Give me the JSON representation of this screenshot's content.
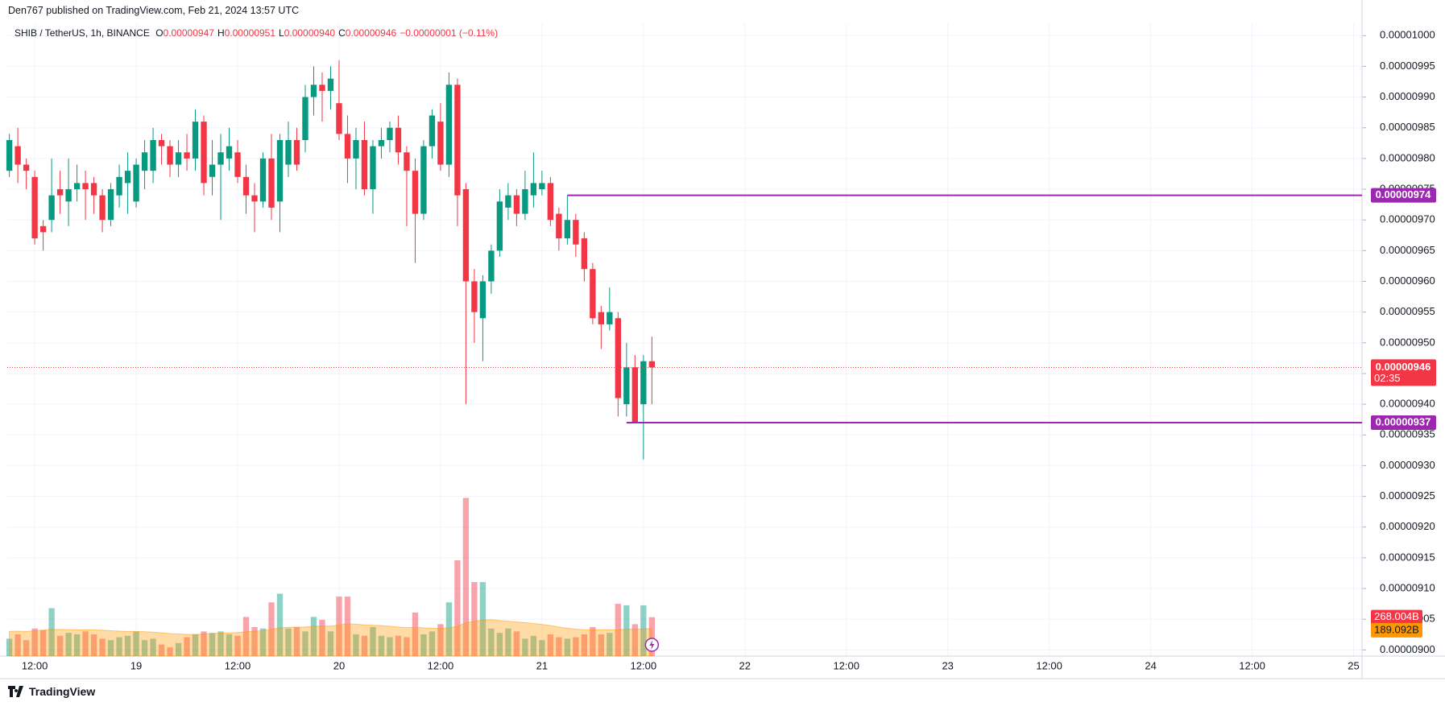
{
  "chart_data": {
    "type": "candlestick",
    "publisher": "Den767 published on TradingView.com, Feb 21, 2024 13:57 UTC",
    "title": "SHIB / TetherUS, 1h, BINANCE",
    "ohlc_legend": [
      {
        "key": "O",
        "value": "0.00000947"
      },
      {
        "key": "H",
        "value": "0.00000951"
      },
      {
        "key": "L",
        "value": "0.00000940"
      },
      {
        "key": "C",
        "value": "0.00000946"
      }
    ],
    "change": "−0.00000001 (−0.11%)",
    "brand": "TradingView",
    "up_color": "#089981",
    "down_color": "#f23645",
    "level_color": "#9c27b0",
    "ma_color": "#ff9800",
    "grid": true,
    "x": [
      "2024-02-18T09:00",
      "2024-02-18T10:00",
      "2024-02-18T11:00",
      "2024-02-18T12:00",
      "2024-02-18T13:00",
      "2024-02-18T14:00",
      "2024-02-18T15:00",
      "2024-02-18T16:00",
      "2024-02-18T17:00",
      "2024-02-18T18:00",
      "2024-02-18T19:00",
      "2024-02-18T20:00",
      "2024-02-18T21:00",
      "2024-02-18T22:00",
      "2024-02-18T23:00",
      "2024-02-19T00:00",
      "2024-02-19T01:00",
      "2024-02-19T02:00",
      "2024-02-19T03:00",
      "2024-02-19T04:00",
      "2024-02-19T05:00",
      "2024-02-19T06:00",
      "2024-02-19T07:00",
      "2024-02-19T08:00",
      "2024-02-19T09:00",
      "2024-02-19T10:00",
      "2024-02-19T11:00",
      "2024-02-19T12:00",
      "2024-02-19T13:00",
      "2024-02-19T14:00",
      "2024-02-19T15:00",
      "2024-02-19T16:00",
      "2024-02-19T17:00",
      "2024-02-19T18:00",
      "2024-02-19T19:00",
      "2024-02-19T20:00",
      "2024-02-19T21:00",
      "2024-02-19T22:00",
      "2024-02-19T23:00",
      "2024-02-20T00:00",
      "2024-02-20T01:00",
      "2024-02-20T02:00",
      "2024-02-20T03:00",
      "2024-02-20T04:00",
      "2024-02-20T05:00",
      "2024-02-20T06:00",
      "2024-02-20T07:00",
      "2024-02-20T08:00",
      "2024-02-20T09:00",
      "2024-02-20T10:00",
      "2024-02-20T11:00",
      "2024-02-20T12:00",
      "2024-02-20T13:00",
      "2024-02-20T14:00",
      "2024-02-20T15:00",
      "2024-02-20T16:00",
      "2024-02-20T17:00",
      "2024-02-20T18:00",
      "2024-02-20T19:00",
      "2024-02-20T20:00",
      "2024-02-20T21:00",
      "2024-02-20T22:00",
      "2024-02-20T23:00",
      "2024-02-21T00:00",
      "2024-02-21T01:00",
      "2024-02-21T02:00",
      "2024-02-21T03:00",
      "2024-02-21T04:00",
      "2024-02-21T05:00",
      "2024-02-21T06:00",
      "2024-02-21T07:00",
      "2024-02-21T08:00",
      "2024-02-21T09:00",
      "2024-02-21T10:00",
      "2024-02-21T11:00",
      "2024-02-21T12:00",
      "2024-02-21T13:00"
    ],
    "open": [
      9.78e-06,
      9.82e-06,
      9.79e-06,
      9.77e-06,
      9.69e-06,
      9.7e-06,
      9.75e-06,
      9.73e-06,
      9.75e-06,
      9.76e-06,
      9.76e-06,
      9.74e-06,
      9.7e-06,
      9.74e-06,
      9.76e-06,
      9.73e-06,
      9.78e-06,
      9.78e-06,
      9.83e-06,
      9.82e-06,
      9.79e-06,
      9.81e-06,
      9.8e-06,
      9.86e-06,
      9.77e-06,
      9.79e-06,
      9.8e-06,
      9.81e-06,
      9.77e-06,
      9.74e-06,
      9.73e-06,
      9.8e-06,
      9.73e-06,
      9.79e-06,
      9.83e-06,
      9.83e-06,
      9.9e-06,
      9.92e-06,
      9.91e-06,
      9.89e-06,
      9.84e-06,
      9.8e-06,
      9.83e-06,
      9.75e-06,
      9.82e-06,
      9.83e-06,
      9.85e-06,
      9.81e-06,
      9.78e-06,
      9.71e-06,
      9.82e-06,
      9.86e-06,
      9.79e-06,
      9.92e-06,
      9.75e-06,
      9.6e-06,
      9.54e-06,
      9.6e-06,
      9.65e-06,
      9.72e-06,
      9.74e-06,
      9.71e-06,
      9.74e-06,
      9.75e-06,
      9.76e-06,
      9.71e-06,
      9.67e-06,
      9.7e-06,
      9.67e-06,
      9.62e-06,
      9.55e-06,
      9.53e-06,
      9.54e-06,
      9.4e-06,
      9.46e-06,
      9.4e-06,
      9.47e-06
    ],
    "high": [
      9.84e-06,
      9.85e-06,
      9.8e-06,
      9.78e-06,
      9.7e-06,
      9.8e-06,
      9.78e-06,
      9.8e-06,
      9.79e-06,
      9.78e-06,
      9.77e-06,
      9.75e-06,
      9.76e-06,
      9.79e-06,
      9.81e-06,
      9.8e-06,
      9.83e-06,
      9.85e-06,
      9.84e-06,
      9.83e-06,
      9.83e-06,
      9.84e-06,
      9.88e-06,
      9.87e-06,
      9.83e-06,
      9.84e-06,
      9.85e-06,
      9.83e-06,
      9.79e-06,
      9.76e-06,
      9.81e-06,
      9.84e-06,
      9.84e-06,
      9.86e-06,
      9.85e-06,
      9.92e-06,
      9.95e-06,
      9.94e-06,
      9.95e-06,
      9.96e-06,
      9.87e-06,
      9.85e-06,
      9.86e-06,
      9.83e-06,
      9.85e-06,
      9.86e-06,
      9.87e-06,
      9.82e-06,
      9.8e-06,
      9.83e-06,
      9.88e-06,
      9.89e-06,
      9.94e-06,
      9.93e-06,
      9.76e-06,
      9.62e-06,
      9.61e-06,
      9.66e-06,
      9.75e-06,
      9.76e-06,
      9.75e-06,
      9.78e-06,
      9.81e-06,
      9.78e-06,
      9.77e-06,
      9.72e-06,
      9.74e-06,
      9.71e-06,
      9.68e-06,
      9.63e-06,
      9.56e-06,
      9.59e-06,
      9.55e-06,
      9.5e-06,
      9.48e-06,
      9.48e-06,
      9.51e-06
    ],
    "low": [
      9.77e-06,
      9.76e-06,
      9.75e-06,
      9.66e-06,
      9.65e-06,
      9.68e-06,
      9.71e-06,
      9.69e-06,
      9.73e-06,
      9.7e-06,
      9.71e-06,
      9.68e-06,
      9.69e-06,
      9.72e-06,
      9.71e-06,
      9.72e-06,
      9.75e-06,
      9.76e-06,
      9.79e-06,
      9.77e-06,
      9.77e-06,
      9.78e-06,
      9.78e-06,
      9.74e-06,
      9.74e-06,
      9.7e-06,
      9.78e-06,
      9.76e-06,
      9.71e-06,
      9.68e-06,
      9.72e-06,
      9.7e-06,
      9.68e-06,
      9.77e-06,
      9.78e-06,
      9.81e-06,
      9.87e-06,
      9.86e-06,
      9.88e-06,
      9.83e-06,
      9.76e-06,
      9.75e-06,
      9.74e-06,
      9.71e-06,
      9.8e-06,
      9.81e-06,
      9.79e-06,
      9.69e-06,
      9.63e-06,
      9.7e-06,
      9.8e-06,
      9.78e-06,
      9.77e-06,
      9.69e-06,
      9.4e-06,
      9.5e-06,
      9.47e-06,
      9.58e-06,
      9.64e-06,
      9.7e-06,
      9.69e-06,
      9.7e-06,
      9.72e-06,
      9.74e-06,
      9.69e-06,
      9.65e-06,
      9.66e-06,
      9.64e-06,
      9.6e-06,
      9.53e-06,
      9.49e-06,
      9.52e-06,
      9.38e-06,
      9.38e-06,
      9.37e-06,
      9.31e-06,
      9.4e-06
    ],
    "close": [
      9.83e-06,
      9.79e-06,
      9.78e-06,
      9.67e-06,
      9.68e-06,
      9.74e-06,
      9.74e-06,
      9.75e-06,
      9.76e-06,
      9.75e-06,
      9.74e-06,
      9.7e-06,
      9.75e-06,
      9.77e-06,
      9.78e-06,
      9.79e-06,
      9.81e-06,
      9.83e-06,
      9.82e-06,
      9.79e-06,
      9.81e-06,
      9.8e-06,
      9.86e-06,
      9.76e-06,
      9.79e-06,
      9.81e-06,
      9.82e-06,
      9.77e-06,
      9.74e-06,
      9.73e-06,
      9.8e-06,
      9.72e-06,
      9.83e-06,
      9.83e-06,
      9.79e-06,
      9.9e-06,
      9.92e-06,
      9.91e-06,
      9.93e-06,
      9.84e-06,
      9.8e-06,
      9.83e-06,
      9.75e-06,
      9.82e-06,
      9.83e-06,
      9.85e-06,
      9.81e-06,
      9.78e-06,
      9.71e-06,
      9.82e-06,
      9.87e-06,
      9.79e-06,
      9.92e-06,
      9.74e-06,
      9.6e-06,
      9.55e-06,
      9.6e-06,
      9.65e-06,
      9.73e-06,
      9.74e-06,
      9.71e-06,
      9.75e-06,
      9.76e-06,
      9.76e-06,
      9.7e-06,
      9.67e-06,
      9.7e-06,
      9.66e-06,
      9.62e-06,
      9.54e-06,
      9.53e-06,
      9.55e-06,
      9.41e-06,
      9.46e-06,
      9.37e-06,
      9.47e-06,
      9.46e-06
    ],
    "volume": {
      "values": [
        120,
        150,
        110,
        190,
        180,
        330,
        140,
        160,
        150,
        170,
        150,
        120,
        110,
        130,
        140,
        170,
        110,
        120,
        80,
        60,
        90,
        130,
        150,
        170,
        160,
        170,
        150,
        140,
        270,
        200,
        190,
        370,
        430,
        190,
        200,
        170,
        270,
        250,
        170,
        410,
        410,
        150,
        140,
        200,
        140,
        130,
        140,
        130,
        300,
        150,
        170,
        220,
        370,
        660,
        1090,
        510,
        510,
        190,
        160,
        190,
        170,
        120,
        140,
        110,
        150,
        130,
        120,
        130,
        150,
        200,
        150,
        160,
        360,
        350,
        220,
        350,
        268.004
      ],
      "ma": [
        170,
        172,
        170,
        175,
        178,
        185,
        183,
        182,
        180,
        181,
        180,
        178,
        175,
        172,
        170,
        170,
        168,
        165,
        160,
        155,
        152,
        150,
        150,
        152,
        155,
        158,
        160,
        162,
        168,
        172,
        175,
        185,
        195,
        198,
        200,
        200,
        205,
        208,
        206,
        215,
        222,
        220,
        215,
        212,
        210,
        205,
        200,
        196,
        198,
        195,
        192,
        190,
        195,
        205,
        230,
        240,
        248,
        250,
        245,
        240,
        235,
        230,
        225,
        218,
        210,
        200,
        192,
        185,
        182,
        180,
        182,
        180,
        182,
        185,
        186,
        188,
        189.092
      ],
      "label": {
        "value": 268.004,
        "label": "268.004B"
      },
      "ma_label": {
        "value": 189.092,
        "label": "189.092B"
      }
    },
    "levels": [
      {
        "value": 9.74e-06,
        "label": "0.00000974",
        "from": "2024-02-21T03:00"
      },
      {
        "value": 9.37e-06,
        "label": "0.00000937",
        "from": "2024-02-21T10:00"
      }
    ],
    "last_price": {
      "value": 9.46e-06,
      "label": "0.00000946"
    },
    "countdown": "02:35",
    "xlim": [
      "2024-02-18T08:45",
      "2024-02-25T01:00"
    ],
    "xticks": [
      {
        "value": "2024-02-18T12:00",
        "label": "12:00"
      },
      {
        "value": "2024-02-19T00:00",
        "label": "19"
      },
      {
        "value": "2024-02-19T12:00",
        "label": "12:00"
      },
      {
        "value": "2024-02-20T00:00",
        "label": "20"
      },
      {
        "value": "2024-02-20T12:00",
        "label": "12:00"
      },
      {
        "value": "2024-02-21T00:00",
        "label": "21"
      },
      {
        "value": "2024-02-21T12:00",
        "label": "12:00"
      },
      {
        "value": "2024-02-22T00:00",
        "label": "22"
      },
      {
        "value": "2024-02-22T12:00",
        "label": "12:00"
      },
      {
        "value": "2024-02-23T00:00",
        "label": "23"
      },
      {
        "value": "2024-02-23T12:00",
        "label": "12:00"
      },
      {
        "value": "2024-02-24T00:00",
        "label": "24"
      },
      {
        "value": "2024-02-24T12:00",
        "label": "12:00"
      },
      {
        "value": "2024-02-25T00:00",
        "label": "25"
      }
    ],
    "ylim": [
      8.99e-06,
      1.002e-05
    ],
    "yticks": [
      {
        "value": 9e-06,
        "label": "0.00000900"
      },
      {
        "value": 9.05e-06,
        "label": "0.00000905"
      },
      {
        "value": 9.1e-06,
        "label": "0.00000910"
      },
      {
        "value": 9.15e-06,
        "label": "0.00000915"
      },
      {
        "value": 9.2e-06,
        "label": "0.00000920"
      },
      {
        "value": 9.25e-06,
        "label": "0.00000925"
      },
      {
        "value": 9.3e-06,
        "label": "0.00000930"
      },
      {
        "value": 9.35e-06,
        "label": "0.00000935"
      },
      {
        "value": 9.4e-06,
        "label": "0.00000940"
      },
      {
        "value": 9.45e-06,
        "label": "0.00000945"
      },
      {
        "value": 9.5e-06,
        "label": "0.00000950"
      },
      {
        "value": 9.55e-06,
        "label": "0.00000955"
      },
      {
        "value": 9.6e-06,
        "label": "0.00000960"
      },
      {
        "value": 9.65e-06,
        "label": "0.00000965"
      },
      {
        "value": 9.7e-06,
        "label": "0.00000970"
      },
      {
        "value": 9.75e-06,
        "label": "0.00000975"
      },
      {
        "value": 9.8e-06,
        "label": "0.00000980"
      },
      {
        "value": 9.85e-06,
        "label": "0.00000985"
      },
      {
        "value": 9.9e-06,
        "label": "0.00000990"
      },
      {
        "value": 9.95e-06,
        "label": "0.00000995"
      },
      {
        "value": 1e-05,
        "label": "0.00001000"
      }
    ]
  }
}
